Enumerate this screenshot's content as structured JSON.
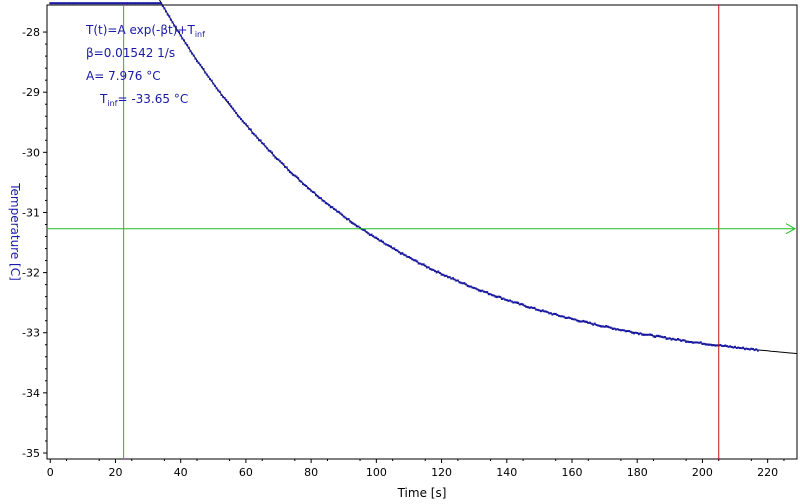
{
  "chart_data": {
    "type": "scatter",
    "title": "",
    "xlabel": "Time [s]",
    "ylabel": "Temperature [C]",
    "xlim": [
      -1,
      229
    ],
    "ylim": [
      -35.1,
      -27.55
    ],
    "xticks": [
      "0",
      "20",
      "40",
      "60",
      "80",
      "100",
      "120",
      "140",
      "160",
      "180",
      "200",
      "220"
    ],
    "yticks": [
      "-28",
      "-29",
      "-30",
      "-31",
      "-32",
      "-33",
      "-34",
      "-35"
    ],
    "grid": false,
    "fit": {
      "formula": "T(t)=A exp(-βt)+T",
      "formula_sub": "inf",
      "beta": "β=0.01542 1/s",
      "A": "A= 7.976 °C",
      "tinf_label": "T",
      "tinf_sub": "inf",
      "tinf_value": "= -33.65 °C",
      "beta_value": 0.01542,
      "A_value": 7.976,
      "tinf_num": -33.65,
      "t0": 17
    },
    "data_series": {
      "start": 0,
      "end": 217,
      "plateau": -27.52,
      "step": 0.5,
      "color": "#1a1aa6"
    },
    "cursors": {
      "vertical_green_x": 22.5,
      "vertical_red_x": 205,
      "horizontal_green_y": -31.27
    },
    "colors": {
      "data": "#1a1aa6",
      "fit": "#000000",
      "green_cursor": "#22bb22",
      "red_cursor": "#cc1111",
      "axis": "#000000",
      "ylabel": "#1a1aa6"
    }
  }
}
